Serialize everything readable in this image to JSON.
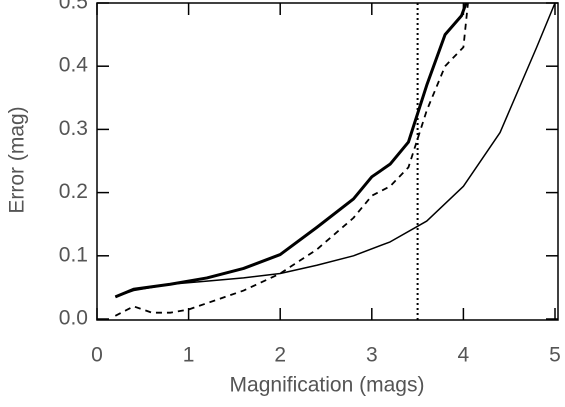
{
  "chart_data": {
    "type": "line",
    "xlabel": "Magnification (mags)",
    "ylabel": "Error (mag)",
    "xlim": [
      0,
      5
    ],
    "xticks": [
      0,
      1,
      2,
      3,
      4,
      5
    ],
    "ylim": [
      0,
      0.5
    ],
    "yticks": [
      {
        "value": 0,
        "label": "0.0"
      },
      0.1,
      0.2,
      0.3,
      0.4,
      0.5
    ],
    "vline": 3.5,
    "series": [
      {
        "color": "#000000",
        "width": 3,
        "dash": "none",
        "x": [
          0.2,
          0.4,
          0.8,
          1.2,
          1.6,
          2.0,
          2.4,
          2.8,
          3.0,
          3.2,
          3.4,
          3.6,
          3.8,
          3.98,
          4.03
        ],
        "values": [
          0.035,
          0.047,
          0.055,
          0.065,
          0.08,
          0.102,
          0.145,
          0.19,
          0.225,
          0.245,
          0.28,
          0.37,
          0.45,
          0.48,
          0.5
        ]
      },
      {
        "color": "#000000",
        "width": 1.8,
        "dash": "6,5",
        "x": [
          0.2,
          0.4,
          0.6,
          0.8,
          1.0,
          1.2,
          1.6,
          2.0,
          2.4,
          2.8,
          3.0,
          3.2,
          3.4,
          3.6,
          3.8,
          4.0,
          4.05
        ],
        "values": [
          0.005,
          0.02,
          0.01,
          0.01,
          0.015,
          0.025,
          0.045,
          0.072,
          0.11,
          0.16,
          0.195,
          0.21,
          0.24,
          0.33,
          0.4,
          0.43,
          0.5
        ]
      },
      {
        "color": "#000000",
        "width": 1.5,
        "dash": "none",
        "x": [
          0.2,
          0.4,
          0.8,
          1.2,
          1.6,
          2.0,
          2.4,
          2.8,
          3.2,
          3.6,
          4.0,
          4.4,
          4.8,
          5.0
        ],
        "values": [
          0.035,
          0.045,
          0.055,
          0.06,
          0.065,
          0.072,
          0.085,
          0.1,
          0.122,
          0.155,
          0.21,
          0.295,
          0.43,
          0.5
        ]
      }
    ]
  }
}
